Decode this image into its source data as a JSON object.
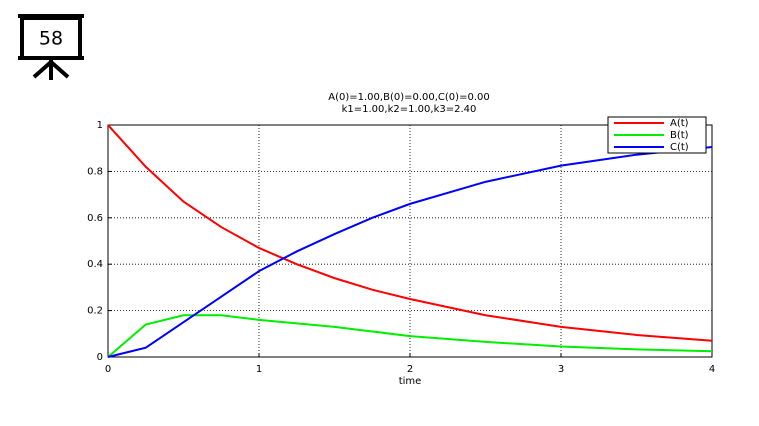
{
  "icon_label": "58",
  "chart_data": {
    "type": "line",
    "title": "A(0)=1.00,B(0)=0.00,C(0)=0.00",
    "subtitle": "k1=1.00,k2=1.00,k3=2.40",
    "x_label": "time",
    "x": [
      0,
      0.25,
      0.5,
      0.75,
      1,
      1.25,
      1.5,
      1.75,
      2,
      2.5,
      3,
      3.5,
      4
    ],
    "series": [
      {
        "name": "A(t)",
        "color": "#ff0000",
        "values": [
          1,
          0.82,
          0.67,
          0.56,
          0.47,
          0.4,
          0.34,
          0.29,
          0.25,
          0.18,
          0.13,
          0.095,
          0.07
        ]
      },
      {
        "name": "B(t)",
        "color": "#00ee00",
        "values": [
          0,
          0.14,
          0.18,
          0.18,
          0.16,
          0.145,
          0.13,
          0.11,
          0.09,
          0.065,
          0.045,
          0.033,
          0.025
        ]
      },
      {
        "name": "C(t)",
        "color": "#0000ff",
        "values": [
          0,
          0.04,
          0.15,
          0.26,
          0.37,
          0.455,
          0.53,
          0.6,
          0.66,
          0.755,
          0.825,
          0.872,
          0.905
        ]
      }
    ],
    "xlim": [
      0,
      4
    ],
    "xticks": [
      0,
      1,
      2,
      3,
      4
    ],
    "ylim": [
      0,
      1
    ],
    "yticks": [
      0,
      0.2,
      0.4,
      0.6,
      0.8,
      1
    ],
    "grid": true,
    "legend": "upper right"
  }
}
